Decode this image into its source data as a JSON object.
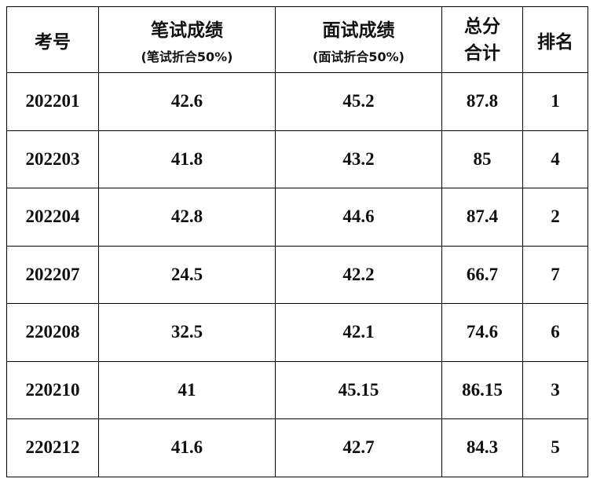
{
  "table": {
    "headers": [
      {
        "label": "考号"
      },
      {
        "label": "笔试成绩",
        "note": "(笔试折合50%)"
      },
      {
        "label": "面试成绩",
        "note": "(面试折合50%)"
      },
      {
        "label": "总分合计"
      },
      {
        "label": "排名"
      }
    ],
    "rows": [
      [
        "202201",
        "42.6",
        "45.2",
        "87.8",
        "1"
      ],
      [
        "202203",
        "41.8",
        "43.2",
        "85",
        "4"
      ],
      [
        "202204",
        "42.8",
        "44.6",
        "87.4",
        "2"
      ],
      [
        "202207",
        "24.5",
        "42.2",
        "66.7",
        "7"
      ],
      [
        "220208",
        "32.5",
        "42.1",
        "74.6",
        "6"
      ],
      [
        "220210",
        "41",
        "45.15",
        "86.15",
        "3"
      ],
      [
        "220212",
        "41.6",
        "42.7",
        "84.3",
        "5"
      ]
    ]
  }
}
